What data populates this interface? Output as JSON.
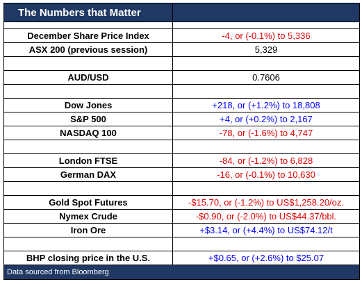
{
  "header": {
    "title": "The Numbers that Matter"
  },
  "groups": [
    [
      {
        "label": "December Share Price Index",
        "value": "-4, or (-0.1%) to 5,336",
        "color": "#e00000"
      },
      {
        "label": "ASX 200 (previous session)",
        "value": "5,329",
        "color": "#000000"
      }
    ],
    [
      {
        "label": "AUD/USD",
        "value": "0.7606",
        "color": "#000000"
      }
    ],
    [
      {
        "label": "Dow Jones",
        "value": "+218, or (+1.2%) to 18,808",
        "color": "#0000ff"
      },
      {
        "label": "S&P 500",
        "value": "+4, or (+0.2%) to 2,167",
        "color": "#0000ff"
      },
      {
        "label": "NASDAQ 100",
        "value": "-78, or (-1.6%) to 4,747",
        "color": "#e00000"
      }
    ],
    [
      {
        "label": "London FTSE",
        "value": "-84, or (-1.2%) to 6,828",
        "color": "#e00000"
      },
      {
        "label": "German DAX",
        "value": "-16, or (-0.1%) to 10,630",
        "color": "#e00000"
      }
    ],
    [
      {
        "label": "Gold Spot Futures",
        "value": "-$15.70, or (-1.2%) to US$1,258.20/oz.",
        "color": "#e00000"
      },
      {
        "label": "Nymex Crude",
        "value": "-$0.90, or (-2.0%) to US$44.37/bbl.",
        "color": "#e00000"
      },
      {
        "label": "Iron Ore",
        "value": "+$3.14, or (+4.4%) to US$74.12/t",
        "color": "#0000ff"
      }
    ],
    [
      {
        "label": "BHP closing price in the U.S.",
        "value": "+$0.65, or (+2.6%) to $25.07",
        "color": "#0000ff"
      }
    ]
  ],
  "footer": {
    "source": "Data sourced from Bloomberg"
  }
}
